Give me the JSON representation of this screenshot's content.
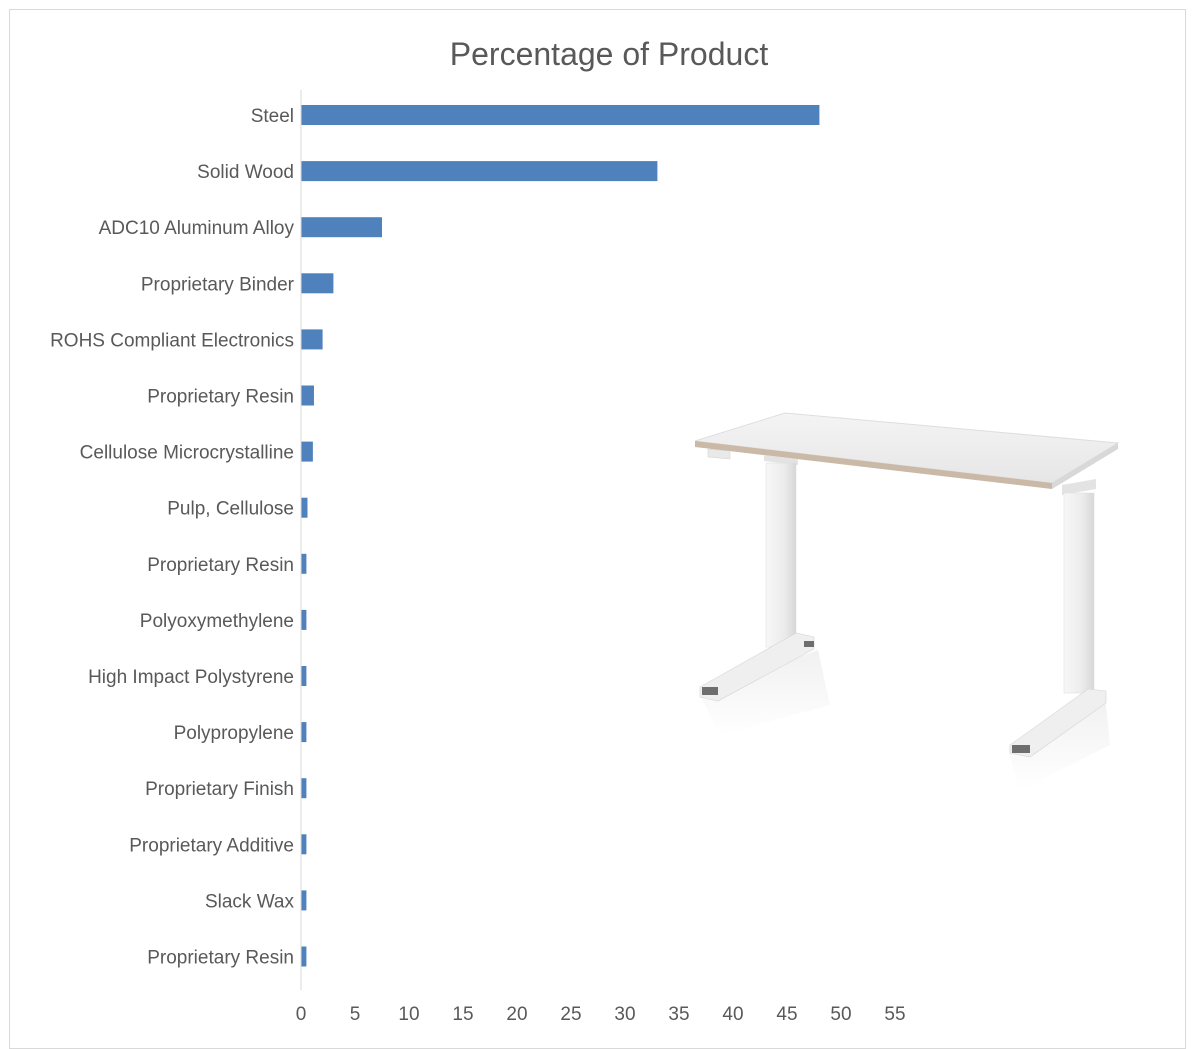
{
  "chart_data": {
    "type": "bar",
    "orientation": "horizontal",
    "title": "Percentage of Product",
    "xlabel": "",
    "ylabel": "",
    "categories": [
      "Steel",
      "Solid Wood",
      "ADC10 Aluminum Alloy",
      "Proprietary Binder",
      "ROHS Compliant Electronics",
      "Proprietary Resin",
      "Cellulose Microcrystalline",
      "Pulp, Cellulose",
      "Proprietary Resin",
      "Polyoxymethylene",
      "High Impact Polystyrene",
      "Polypropylene",
      "Proprietary Finish",
      "Proprietary Additive",
      "Slack Wax",
      "Proprietary Resin"
    ],
    "values": [
      48,
      33,
      7.5,
      3,
      2,
      1.2,
      1.1,
      0.6,
      0.5,
      0.5,
      0.5,
      0.5,
      0.5,
      0.5,
      0.5,
      0.5
    ],
    "xlim": [
      0,
      55
    ],
    "xticks": [
      "0",
      "5",
      "10",
      "15",
      "20",
      "25",
      "30",
      "35",
      "40",
      "45",
      "50",
      "55"
    ],
    "grid": false,
    "legend": "none",
    "bar_color": "#4f81bd",
    "label_color": "#595959",
    "axis_color": "#d9d9d9"
  },
  "image": {
    "subject": "white-height-adjustable-desk-photo"
  }
}
